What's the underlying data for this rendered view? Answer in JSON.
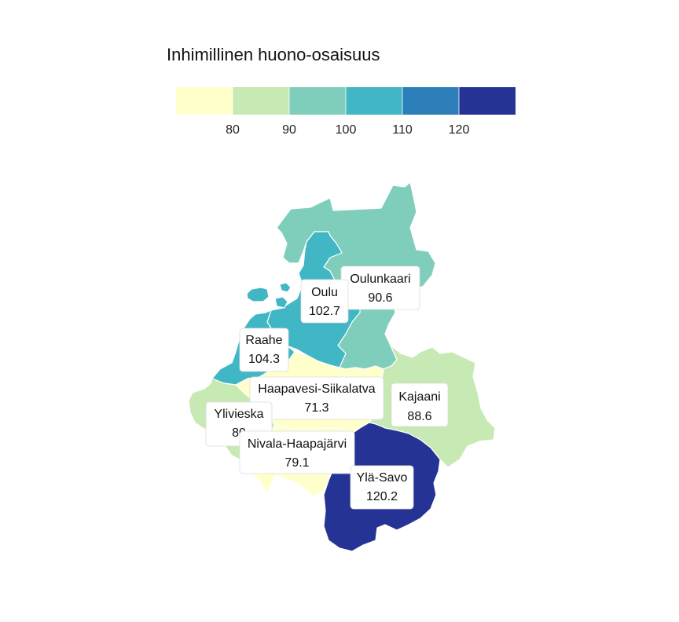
{
  "legend": {
    "title": "Inhimillinen huono-osaisuus",
    "ticks": [
      "80",
      "90",
      "100",
      "110",
      "120"
    ],
    "bins": [
      {
        "from": null,
        "to": 80,
        "color": "#ffffcc"
      },
      {
        "from": 80,
        "to": 90,
        "color": "#c7e9b4"
      },
      {
        "from": 90,
        "to": 100,
        "color": "#7fcdbb"
      },
      {
        "from": 100,
        "to": 110,
        "color": "#41b6c4"
      },
      {
        "from": 110,
        "to": 120,
        "color": "#2c7fb8"
      },
      {
        "from": 120,
        "to": null,
        "color": "#253494"
      }
    ]
  },
  "regions": [
    {
      "id": "oulunkaari",
      "name": "Oulunkaari",
      "value": 90.6,
      "value_text": "90.6"
    },
    {
      "id": "oulu",
      "name": "Oulu",
      "value": 102.7,
      "value_text": "102.7"
    },
    {
      "id": "raahe",
      "name": "Raahe",
      "value": 104.3,
      "value_text": "104.3"
    },
    {
      "id": "haapavesi",
      "name": "Haapavesi-Siikalatva",
      "value": 71.3,
      "value_text": "71.3"
    },
    {
      "id": "kajaani",
      "name": "Kajaani",
      "value": 88.6,
      "value_text": "88.6"
    },
    {
      "id": "ylivieska",
      "name": "Ylivieska",
      "value": 80,
      "value_text": "80"
    },
    {
      "id": "nivala",
      "name": "Nivala-Haapajärvi",
      "value": 79.1,
      "value_text": "79.1"
    },
    {
      "id": "ylasavo",
      "name": "Ylä-Savo",
      "value": 120.2,
      "value_text": "120.2"
    }
  ]
}
